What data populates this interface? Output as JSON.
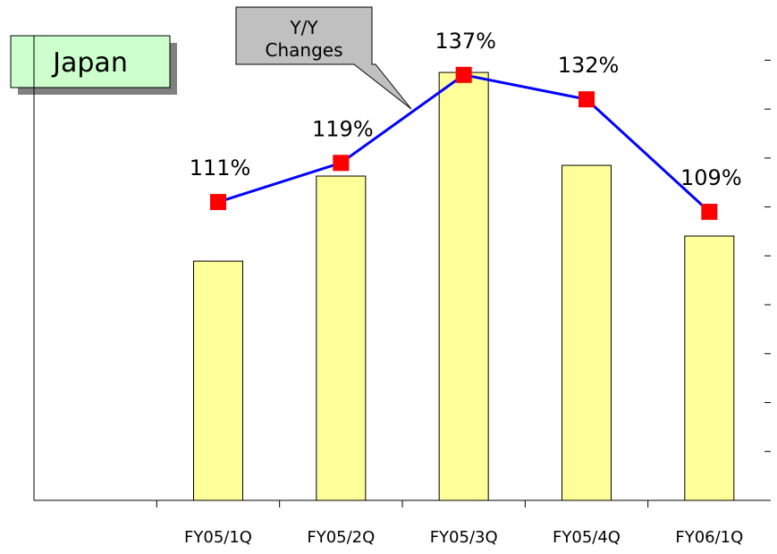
{
  "chart_data": {
    "type": "bar",
    "title": "Japan",
    "annotation": [
      "Y/Y",
      "Changes"
    ],
    "categories": [
      null,
      "FY05/1Q",
      "FY05/2Q",
      "FY05/3Q",
      "FY05/4Q",
      "FY06/1Q"
    ],
    "series": [
      {
        "type": "bar",
        "color": "#ffff99",
        "values": [
          null,
          51.5,
          69.8,
          92.1,
          72.1,
          56.9
        ]
      },
      {
        "type": "line",
        "axis": "y2",
        "color": "#0000ff",
        "marker_color": "#ff0000",
        "values": [
          null,
          111,
          119,
          137,
          132,
          109
        ],
        "value_labels": [
          null,
          "111%",
          "119%",
          "137%",
          "132%",
          "109%"
        ]
      }
    ],
    "ylim": [
      0,
      100
    ],
    "yticks": [],
    "y2lim": [
      50,
      145
    ],
    "y2ticks": [
      50,
      60,
      70,
      80,
      90,
      100,
      110,
      120,
      130,
      140
    ]
  }
}
